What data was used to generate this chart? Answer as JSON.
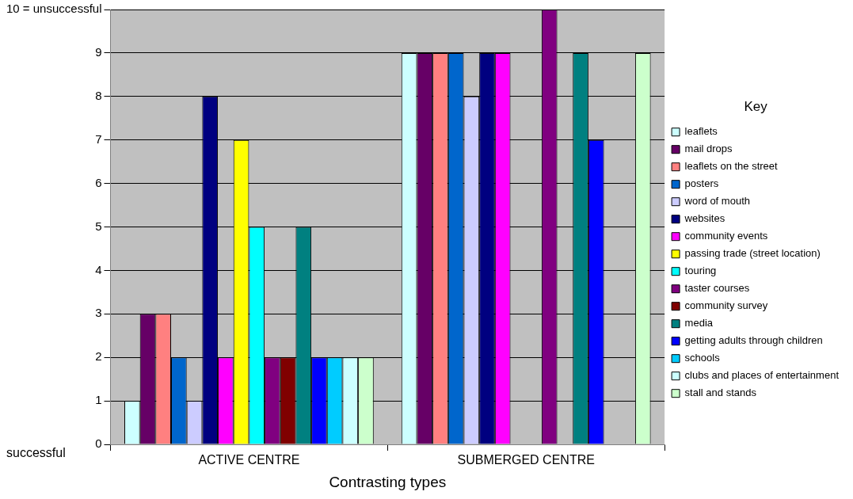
{
  "chart_data": {
    "type": "bar",
    "xlabel": "Contrasting types",
    "legend_title": "Key",
    "categories": [
      "ACTIVE CENTRE",
      "SUBMERGED CENTRE"
    ],
    "series": [
      {
        "name": "leaflets",
        "color": "#ccffff",
        "values": [
          1,
          9
        ]
      },
      {
        "name": "mail drops",
        "color": "#660066",
        "values": [
          3,
          9
        ]
      },
      {
        "name": "leaflets on the street",
        "color": "#ff8080",
        "values": [
          3,
          9
        ]
      },
      {
        "name": "posters",
        "color": "#0066cc",
        "values": [
          2,
          9
        ]
      },
      {
        "name": "word of mouth",
        "color": "#ccccff",
        "values": [
          1,
          8
        ]
      },
      {
        "name": "websites",
        "color": "#000080",
        "values": [
          8,
          9
        ]
      },
      {
        "name": "community events",
        "color": "#ff00ff",
        "values": [
          2,
          9
        ]
      },
      {
        "name": "passing trade (street location)",
        "color": "#ffff00",
        "values": [
          7,
          null
        ]
      },
      {
        "name": "touring",
        "color": "#00ffff",
        "values": [
          5,
          null
        ]
      },
      {
        "name": "taster courses",
        "color": "#800080",
        "values": [
          2,
          10
        ]
      },
      {
        "name": "community survey",
        "color": "#800000",
        "values": [
          2,
          null
        ]
      },
      {
        "name": "media",
        "color": "#008080",
        "values": [
          5,
          9
        ]
      },
      {
        "name": "getting adults through children",
        "color": "#0000ff",
        "values": [
          2,
          7
        ]
      },
      {
        "name": "schools",
        "color": "#00ccff",
        "values": [
          2,
          null
        ]
      },
      {
        "name": "clubs and places of entertainment",
        "color": "#ccffff",
        "values": [
          2,
          null
        ]
      },
      {
        "name": "stall and stands",
        "color": "#ccffcc",
        "values": [
          2,
          9
        ]
      }
    ],
    "ylim": [
      0,
      10
    ],
    "yticks": [
      0,
      1,
      2,
      3,
      4,
      5,
      6,
      7,
      8,
      9,
      {
        "value": 10,
        "label": "10 = unsuccessful"
      }
    ],
    "annotations": [
      "successful"
    ],
    "grid": "y",
    "legend": "right"
  }
}
